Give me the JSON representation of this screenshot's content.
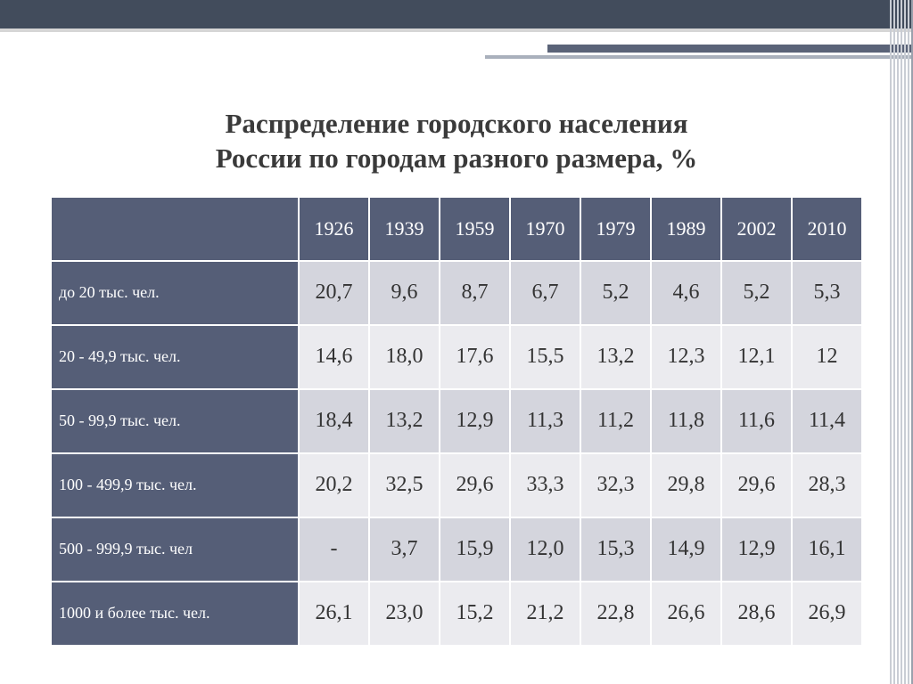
{
  "title_line1": "Распределение городского населения",
  "title_line2": "России по городам разного размера, %",
  "table": {
    "headers": [
      "",
      "1926",
      "1939",
      "1959",
      "1970",
      "1979",
      "1989",
      "2002",
      "2010"
    ],
    "rows": [
      {
        "label": "до 20 тыс. чел.",
        "cells": [
          "20,7",
          "9,6",
          "8,7",
          "6,7",
          "5,2",
          "4,6",
          "5,2",
          "5,3"
        ]
      },
      {
        "label": "20 - 49,9 тыс. чел.",
        "cells": [
          "14,6",
          "18,0",
          "17,6",
          "15,5",
          "13,2",
          "12,3",
          "12,1",
          "12"
        ]
      },
      {
        "label": "50 - 99,9 тыс. чел.",
        "cells": [
          "18,4",
          "13,2",
          "12,9",
          "11,3",
          "11,2",
          "11,8",
          "11,6",
          "11,4"
        ]
      },
      {
        "label": "100 - 499,9 тыс. чел.",
        "cells": [
          "20,2",
          "32,5",
          "29,6",
          "33,3",
          "32,3",
          "29,8",
          "29,6",
          "28,3"
        ]
      },
      {
        "label": "500 - 999,9 тыс. чел",
        "cells": [
          "-",
          "3,7",
          "15,9",
          "12,0",
          "15,3",
          "14,9",
          "12,9",
          "16,1"
        ]
      },
      {
        "label": "1000 и более тыс. чел.",
        "cells": [
          "26,1",
          "23,0",
          "15,2",
          "21,2",
          "22,8",
          "26,6",
          "28,6",
          "26,9"
        ]
      }
    ]
  },
  "colors": {
    "header_bg": "#555e77",
    "row_even_bg": "#d4d5dd",
    "row_odd_bg": "#ebebef",
    "top_bar": "#424c5c",
    "accent1": "#5a6378",
    "accent2": "#a9b0bc"
  }
}
